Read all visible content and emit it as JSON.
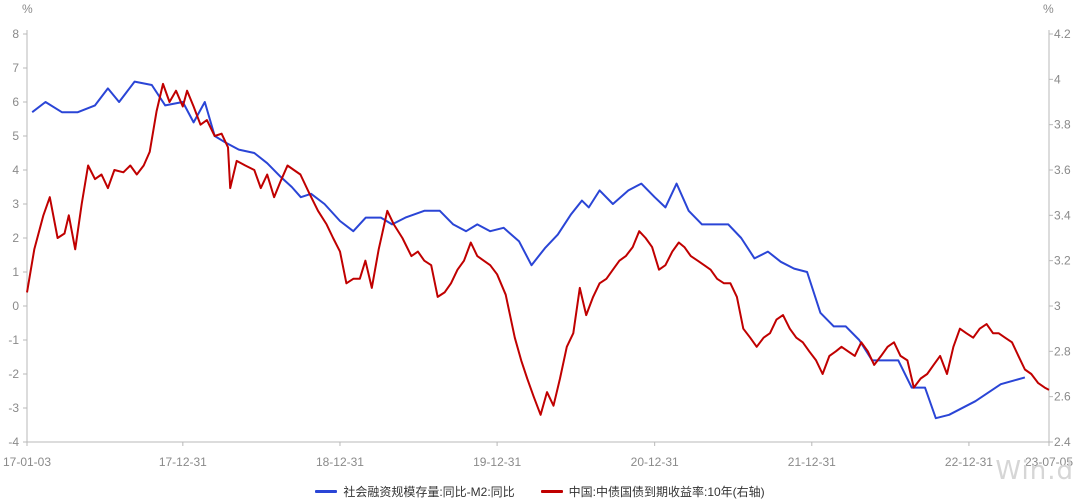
{
  "chart_data": {
    "type": "line",
    "title": "",
    "left_axis": {
      "unit": "%",
      "min": -4,
      "max": 8,
      "ticks": [
        "8",
        "7",
        "6",
        "5",
        "4",
        "3",
        "2",
        "1",
        "0",
        "-1",
        "-2",
        "-3",
        "-4"
      ]
    },
    "right_axis": {
      "unit": "%",
      "min": 2.4,
      "max": 4.2,
      "ticks": [
        "4.2",
        "4",
        "3.8",
        "3.6",
        "3.4",
        "3.2",
        "3",
        "2.8",
        "2.6",
        "2.4"
      ]
    },
    "x_ticks": [
      "17-01-03",
      "17-12-31",
      "18-12-31",
      "19-12-31",
      "20-12-31",
      "21-12-31",
      "22-12-31",
      "23-07-05"
    ],
    "x_range": [
      "2017-01-03",
      "2023-07-05"
    ],
    "grid": false,
    "legend_position": "bottom",
    "watermark": "Win.d",
    "series": [
      {
        "name": "社会融资规模存量:同比-M2:同比",
        "axis": "left",
        "color": "#2a45d6",
        "points": [
          [
            "2017-01-15",
            5.7
          ],
          [
            "2017-02-15",
            6.0
          ],
          [
            "2017-03-25",
            5.7
          ],
          [
            "2017-05-01",
            5.7
          ],
          [
            "2017-06-10",
            5.9
          ],
          [
            "2017-07-10",
            6.4
          ],
          [
            "2017-08-05",
            6.0
          ],
          [
            "2017-09-10",
            6.6
          ],
          [
            "2017-10-20",
            6.5
          ],
          [
            "2017-11-20",
            5.9
          ],
          [
            "2017-12-31",
            6.0
          ],
          [
            "2018-01-25",
            5.4
          ],
          [
            "2018-02-20",
            6.0
          ],
          [
            "2018-03-15",
            5.0
          ],
          [
            "2018-04-10",
            4.8
          ],
          [
            "2018-05-10",
            4.6
          ],
          [
            "2018-06-15",
            4.5
          ],
          [
            "2018-07-15",
            4.2
          ],
          [
            "2018-08-15",
            3.8
          ],
          [
            "2018-09-10",
            3.5
          ],
          [
            "2018-10-01",
            3.2
          ],
          [
            "2018-10-25",
            3.3
          ],
          [
            "2018-11-25",
            3.0
          ],
          [
            "2018-12-31",
            2.5
          ],
          [
            "2019-01-31",
            2.2
          ],
          [
            "2019-03-01",
            2.6
          ],
          [
            "2019-04-05",
            2.6
          ],
          [
            "2019-05-01",
            2.4
          ],
          [
            "2019-06-01",
            2.6
          ],
          [
            "2019-07-15",
            2.8
          ],
          [
            "2019-08-20",
            2.8
          ],
          [
            "2019-09-20",
            2.4
          ],
          [
            "2019-10-20",
            2.2
          ],
          [
            "2019-11-15",
            2.4
          ],
          [
            "2019-12-15",
            2.2
          ],
          [
            "2020-01-15",
            2.3
          ],
          [
            "2020-02-20",
            1.9
          ],
          [
            "2020-03-20",
            1.2
          ],
          [
            "2020-04-20",
            1.7
          ],
          [
            "2020-05-20",
            2.1
          ],
          [
            "2020-06-20",
            2.7
          ],
          [
            "2020-07-15",
            3.1
          ],
          [
            "2020-07-31",
            2.9
          ],
          [
            "2020-08-25",
            3.4
          ],
          [
            "2020-09-25",
            3.0
          ],
          [
            "2020-10-31",
            3.4
          ],
          [
            "2020-11-30",
            3.6
          ],
          [
            "2020-12-31",
            3.2
          ],
          [
            "2021-01-25",
            2.9
          ],
          [
            "2021-02-20",
            3.6
          ],
          [
            "2021-03-20",
            2.8
          ],
          [
            "2021-04-20",
            2.4
          ],
          [
            "2021-05-20",
            2.4
          ],
          [
            "2021-06-20",
            2.4
          ],
          [
            "2021-07-20",
            2.0
          ],
          [
            "2021-08-20",
            1.4
          ],
          [
            "2021-09-20",
            1.6
          ],
          [
            "2021-10-20",
            1.3
          ],
          [
            "2021-11-20",
            1.1
          ],
          [
            "2021-12-20",
            1.0
          ],
          [
            "2022-01-20",
            -0.2
          ],
          [
            "2022-02-20",
            -0.6
          ],
          [
            "2022-03-20",
            -0.6
          ],
          [
            "2022-04-20",
            -1.0
          ],
          [
            "2022-05-20",
            -1.6
          ],
          [
            "2022-06-20",
            -1.6
          ],
          [
            "2022-07-20",
            -1.6
          ],
          [
            "2022-08-20",
            -2.4
          ],
          [
            "2022-09-20",
            -2.4
          ],
          [
            "2022-10-15",
            -3.3
          ],
          [
            "2022-11-15",
            -3.2
          ],
          [
            "2023-01-15",
            -2.8
          ],
          [
            "2023-03-15",
            -2.3
          ],
          [
            "2023-05-10",
            -2.1
          ]
        ]
      },
      {
        "name": "中国:中债国债到期收益率:10年(右轴)",
        "axis": "right",
        "color": "#c00000",
        "points": [
          [
            "2017-01-03",
            3.06
          ],
          [
            "2017-01-20",
            3.25
          ],
          [
            "2017-02-10",
            3.4
          ],
          [
            "2017-02-25",
            3.48
          ],
          [
            "2017-03-15",
            3.3
          ],
          [
            "2017-03-31",
            3.32
          ],
          [
            "2017-04-10",
            3.4
          ],
          [
            "2017-04-25",
            3.25
          ],
          [
            "2017-05-10",
            3.45
          ],
          [
            "2017-05-25",
            3.62
          ],
          [
            "2017-06-10",
            3.56
          ],
          [
            "2017-06-25",
            3.58
          ],
          [
            "2017-07-10",
            3.52
          ],
          [
            "2017-07-25",
            3.6
          ],
          [
            "2017-08-15",
            3.59
          ],
          [
            "2017-08-31",
            3.62
          ],
          [
            "2017-09-15",
            3.58
          ],
          [
            "2017-10-01",
            3.62
          ],
          [
            "2017-10-15",
            3.68
          ],
          [
            "2017-10-31",
            3.86
          ],
          [
            "2017-11-15",
            3.98
          ],
          [
            "2017-11-30",
            3.9
          ],
          [
            "2017-12-15",
            3.95
          ],
          [
            "2017-12-31",
            3.88
          ],
          [
            "2018-01-10",
            3.95
          ],
          [
            "2018-01-25",
            3.88
          ],
          [
            "2018-02-10",
            3.8
          ],
          [
            "2018-02-25",
            3.82
          ],
          [
            "2018-03-15",
            3.75
          ],
          [
            "2018-03-31",
            3.76
          ],
          [
            "2018-04-15",
            3.7
          ],
          [
            "2018-04-20",
            3.52
          ],
          [
            "2018-05-05",
            3.64
          ],
          [
            "2018-05-25",
            3.62
          ],
          [
            "2018-06-15",
            3.6
          ],
          [
            "2018-06-30",
            3.52
          ],
          [
            "2018-07-15",
            3.58
          ],
          [
            "2018-07-31",
            3.48
          ],
          [
            "2018-08-15",
            3.55
          ],
          [
            "2018-08-31",
            3.62
          ],
          [
            "2018-09-15",
            3.6
          ],
          [
            "2018-09-30",
            3.58
          ],
          [
            "2018-10-20",
            3.5
          ],
          [
            "2018-11-10",
            3.42
          ],
          [
            "2018-11-30",
            3.36
          ],
          [
            "2018-12-15",
            3.3
          ],
          [
            "2018-12-31",
            3.24
          ],
          [
            "2019-01-15",
            3.1
          ],
          [
            "2019-01-31",
            3.12
          ],
          [
            "2019-02-15",
            3.12
          ],
          [
            "2019-02-28",
            3.2
          ],
          [
            "2019-03-15",
            3.08
          ],
          [
            "2019-03-31",
            3.25
          ],
          [
            "2019-04-20",
            3.42
          ],
          [
            "2019-05-05",
            3.36
          ],
          [
            "2019-05-25",
            3.3
          ],
          [
            "2019-06-15",
            3.22
          ],
          [
            "2019-06-30",
            3.24
          ],
          [
            "2019-07-15",
            3.2
          ],
          [
            "2019-07-31",
            3.18
          ],
          [
            "2019-08-15",
            3.04
          ],
          [
            "2019-08-31",
            3.06
          ],
          [
            "2019-09-15",
            3.1
          ],
          [
            "2019-09-30",
            3.16
          ],
          [
            "2019-10-15",
            3.2
          ],
          [
            "2019-10-31",
            3.28
          ],
          [
            "2019-11-15",
            3.22
          ],
          [
            "2019-11-30",
            3.2
          ],
          [
            "2019-12-15",
            3.18
          ],
          [
            "2019-12-31",
            3.14
          ],
          [
            "2020-01-20",
            3.05
          ],
          [
            "2020-02-10",
            2.86
          ],
          [
            "2020-02-25",
            2.76
          ],
          [
            "2020-03-10",
            2.68
          ],
          [
            "2020-03-25",
            2.6
          ],
          [
            "2020-04-10",
            2.52
          ],
          [
            "2020-04-25",
            2.62
          ],
          [
            "2020-05-10",
            2.56
          ],
          [
            "2020-05-25",
            2.68
          ],
          [
            "2020-06-10",
            2.82
          ],
          [
            "2020-06-25",
            2.88
          ],
          [
            "2020-07-10",
            3.08
          ],
          [
            "2020-07-25",
            2.96
          ],
          [
            "2020-08-10",
            3.04
          ],
          [
            "2020-08-25",
            3.1
          ],
          [
            "2020-09-10",
            3.12
          ],
          [
            "2020-09-25",
            3.16
          ],
          [
            "2020-10-10",
            3.2
          ],
          [
            "2020-10-25",
            3.22
          ],
          [
            "2020-11-10",
            3.26
          ],
          [
            "2020-11-25",
            3.33
          ],
          [
            "2020-12-10",
            3.3
          ],
          [
            "2020-12-25",
            3.26
          ],
          [
            "2021-01-10",
            3.16
          ],
          [
            "2021-01-25",
            3.18
          ],
          [
            "2021-02-10",
            3.24
          ],
          [
            "2021-02-25",
            3.28
          ],
          [
            "2021-03-10",
            3.26
          ],
          [
            "2021-03-25",
            3.22
          ],
          [
            "2021-04-10",
            3.2
          ],
          [
            "2021-04-25",
            3.18
          ],
          [
            "2021-05-10",
            3.16
          ],
          [
            "2021-05-25",
            3.12
          ],
          [
            "2021-06-10",
            3.1
          ],
          [
            "2021-06-25",
            3.1
          ],
          [
            "2021-07-10",
            3.04
          ],
          [
            "2021-07-25",
            2.9
          ],
          [
            "2021-08-10",
            2.86
          ],
          [
            "2021-08-25",
            2.82
          ],
          [
            "2021-09-10",
            2.86
          ],
          [
            "2021-09-25",
            2.88
          ],
          [
            "2021-10-10",
            2.94
          ],
          [
            "2021-10-25",
            2.96
          ],
          [
            "2021-11-10",
            2.9
          ],
          [
            "2021-11-25",
            2.86
          ],
          [
            "2021-12-10",
            2.84
          ],
          [
            "2021-12-25",
            2.8
          ],
          [
            "2022-01-10",
            2.76
          ],
          [
            "2022-01-25",
            2.7
          ],
          [
            "2022-02-10",
            2.78
          ],
          [
            "2022-02-25",
            2.8
          ],
          [
            "2022-03-10",
            2.82
          ],
          [
            "2022-03-25",
            2.8
          ],
          [
            "2022-04-10",
            2.78
          ],
          [
            "2022-04-25",
            2.84
          ],
          [
            "2022-05-10",
            2.8
          ],
          [
            "2022-05-25",
            2.74
          ],
          [
            "2022-06-10",
            2.78
          ],
          [
            "2022-06-25",
            2.82
          ],
          [
            "2022-07-10",
            2.84
          ],
          [
            "2022-07-25",
            2.78
          ],
          [
            "2022-08-10",
            2.76
          ],
          [
            "2022-08-25",
            2.64
          ],
          [
            "2022-09-10",
            2.68
          ],
          [
            "2022-09-25",
            2.7
          ],
          [
            "2022-10-10",
            2.74
          ],
          [
            "2022-10-25",
            2.78
          ],
          [
            "2022-11-10",
            2.7
          ],
          [
            "2022-11-25",
            2.82
          ],
          [
            "2022-12-10",
            2.9
          ],
          [
            "2022-12-25",
            2.88
          ],
          [
            "2023-01-10",
            2.86
          ],
          [
            "2023-01-25",
            2.9
          ],
          [
            "2023-02-10",
            2.92
          ],
          [
            "2023-02-25",
            2.88
          ],
          [
            "2023-03-10",
            2.88
          ],
          [
            "2023-03-25",
            2.86
          ],
          [
            "2023-04-10",
            2.84
          ],
          [
            "2023-04-25",
            2.78
          ],
          [
            "2023-05-10",
            2.72
          ],
          [
            "2023-05-25",
            2.7
          ],
          [
            "2023-06-10",
            2.66
          ],
          [
            "2023-06-25",
            2.64
          ],
          [
            "2023-07-05",
            2.63
          ]
        ]
      }
    ]
  }
}
